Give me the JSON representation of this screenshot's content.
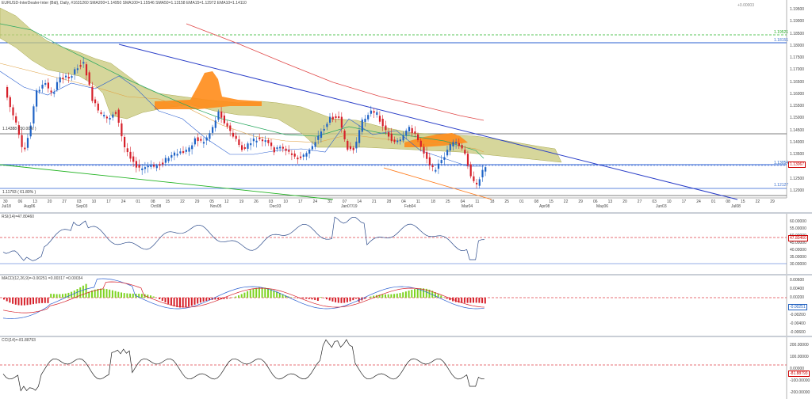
{
  "main": {
    "title": "EURUSD-InterDealer-Inter (Bid), Daily, #1631260  SMA200=1.14950  SMA100=1.15546  SMA50=1.13158  EMA15=1.12972  EMA10=1.14110",
    "price_axis": [
      "1.19500",
      "1.19000",
      "1.18500",
      "1.18000",
      "1.17500",
      "1.17000",
      "1.16500",
      "1.16000",
      "1.15500",
      "1.15000",
      "1.14500",
      "1.14000",
      "1.13500",
      "1.13000",
      "1.12500",
      "1.12000"
    ],
    "current_price": "1.13067",
    "levels": {
      "top_fib": "1.19521",
      "r1": "1.18151",
      "fib50": "1.14388 ( 50.00% )",
      "current_line": "1.13054",
      "s1": "1.12127",
      "fib618": "1.11793 ( 61.80% )"
    },
    "ichimoku_note": "+0.00003",
    "months": [
      "Sep03",
      "Oct08",
      "Nov05",
      "Dec03",
      "Jan07/19",
      "Feb04",
      "Mar04",
      "Apr08",
      "May06",
      "Jun03",
      "Jul08"
    ],
    "days": [
      "30",
      "06",
      "13",
      "20",
      "27",
      "03",
      "10",
      "17",
      "24",
      "01",
      "08",
      "15",
      "22",
      "29",
      "05",
      "12",
      "19",
      "26",
      "03",
      "10",
      "17",
      "24",
      "31",
      "07",
      "14",
      "21",
      "28",
      "04",
      "11",
      "18",
      "25",
      "04",
      "11",
      "18",
      "25",
      "01",
      "08",
      "15",
      "22",
      "29",
      "06",
      "13",
      "20",
      "27",
      "03",
      "10",
      "17",
      "24",
      "01",
      "08",
      "15",
      "22",
      "29"
    ],
    "first_month": "Jul18",
    "second_month": "Aug06"
  },
  "rsi": {
    "title": "RSI(14)=47.80460",
    "axis": [
      "60.00000",
      "55.00000",
      "50.00000",
      "45.00000",
      "40.00000",
      "35.00000",
      "30.00000"
    ],
    "value": "47.80460"
  },
  "macd": {
    "title": "MACD(12,26,9)=-0.00251  =0.00317  =0.00034",
    "axis": [
      "0.00600",
      "0.00400",
      "0.00200",
      "0.00000",
      "-0.00200",
      "-0.00400",
      "-0.00600"
    ],
    "value": "-0.00251"
  },
  "cci": {
    "title": "CCI(14)=-81.88793",
    "axis": [
      "200.00000",
      "100.00000",
      "0.00000",
      "-100.00000",
      "-200.00000"
    ],
    "value": "-81.88793"
  },
  "colors": {
    "up": "#1f63c6",
    "down": "#d6202a",
    "cloud": "#c8c87a",
    "orange_cloud": "#ff8c1a",
    "trend_blue": "#2a3ec8",
    "trend_green": "#22b322",
    "red_dashed": "#e0404a"
  }
}
